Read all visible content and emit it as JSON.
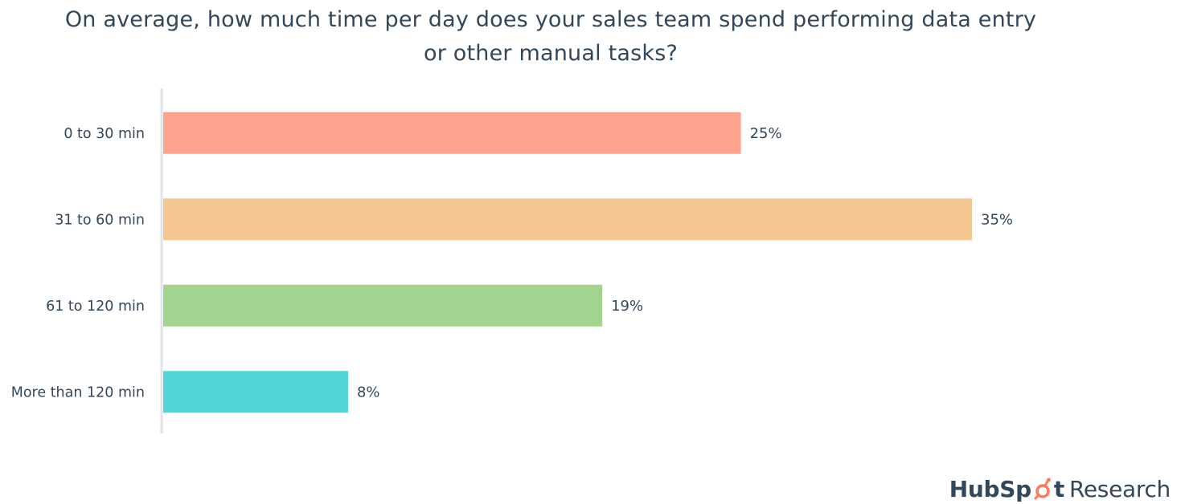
{
  "title": "On average, how much time per day does your sales team spend performing data entry or other manual tasks?",
  "brand": {
    "name": "HubSpot",
    "suffix": "Research",
    "logo_icon": "sprocket-icon",
    "accent_color": "#ff7a59"
  },
  "chart_data": {
    "type": "bar",
    "orientation": "horizontal",
    "title": "On average, how much time per day does your sales team spend performing data entry or other manual tasks?",
    "categories": [
      "0 to 30 min",
      "31 to 60 min",
      "61 to 120 min",
      "More than 120 min"
    ],
    "values": [
      25,
      35,
      19,
      8
    ],
    "value_labels": [
      "25%",
      "35%",
      "19%",
      "8%"
    ],
    "colors": [
      "#fba38c",
      "#f5c790",
      "#a1d48e",
      "#52d4d8"
    ],
    "xlabel": "",
    "ylabel": "",
    "xlim": [
      0,
      35
    ],
    "grid": false,
    "legend": "none"
  }
}
